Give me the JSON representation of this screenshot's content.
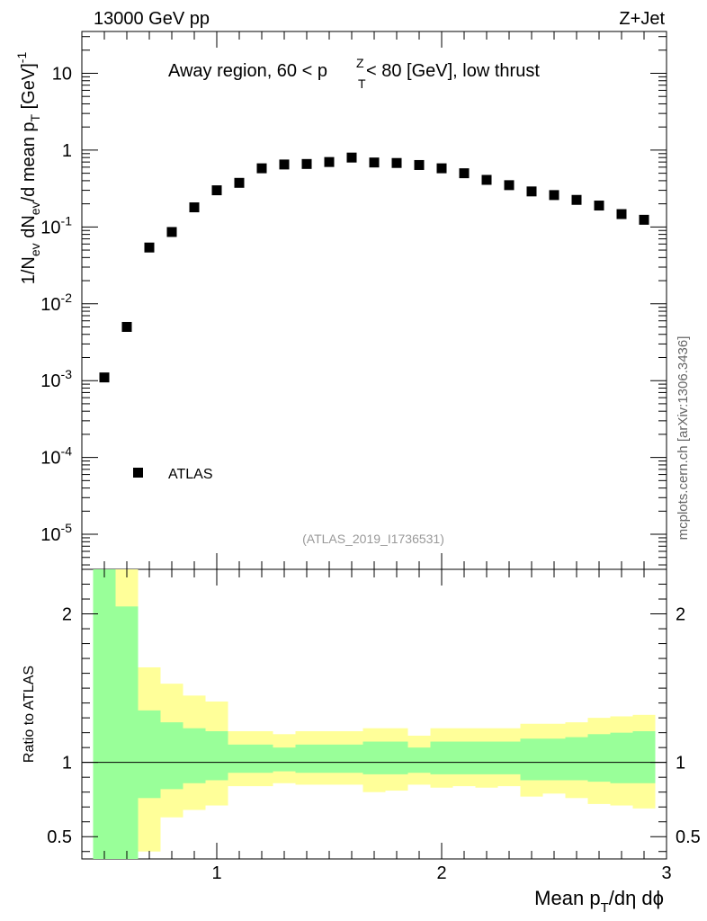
{
  "chart_data": [
    {
      "type": "scatter",
      "header_left": "13000 GeV pp",
      "header_right": "Z+Jet",
      "title": "Away region, 60 < p",
      "title_sup": "Z",
      "title_sub": "T",
      "title_rest": " < 80 [GeV], low thrust",
      "ylabel": "1/N_ev dN_ev/d mean p_T [GeV]^-1",
      "ylabel_parts": {
        "a": "1/N",
        "b": "ev",
        "c": " dN",
        "d": "ev",
        "e": "/d mean p",
        "f": "T",
        "g": " [GeV]",
        "h": "-1"
      },
      "yscale": "log",
      "ylim": [
        3.5e-06,
        35
      ],
      "xlim": [
        0.4,
        3.0
      ],
      "yticks": [
        {
          "v": 10,
          "label": "10"
        },
        {
          "v": 1,
          "label": "1"
        },
        {
          "v": 0.1,
          "base": "10",
          "exp": "-1"
        },
        {
          "v": 0.01,
          "base": "10",
          "exp": "-2"
        },
        {
          "v": 0.001,
          "base": "10",
          "exp": "-3"
        },
        {
          "v": 0.0001,
          "base": "10",
          "exp": "-4"
        },
        {
          "v": 1e-05,
          "base": "10",
          "exp": "-5"
        }
      ],
      "series": [
        {
          "name": "ATLAS",
          "x": [
            0.5,
            0.6,
            0.7,
            0.8,
            0.9,
            1.0,
            1.1,
            1.2,
            1.3,
            1.4,
            1.5,
            1.6,
            1.7,
            1.8,
            1.9,
            2.0,
            2.1,
            2.2,
            2.3,
            2.4,
            2.5,
            2.6,
            2.7,
            2.8,
            2.9
          ],
          "y": [
            0.0011,
            0.005,
            0.054,
            0.086,
            0.18,
            0.3,
            0.375,
            0.58,
            0.65,
            0.66,
            0.7,
            0.8,
            0.69,
            0.68,
            0.64,
            0.58,
            0.5,
            0.41,
            0.35,
            0.29,
            0.26,
            0.225,
            0.19,
            0.147,
            0.124
          ]
        }
      ],
      "legend": "bottom-left",
      "annotation": "(ATLAS_2019_I1736531)",
      "side_label": "mcplots.cern.ch [arXiv:1306.3436]"
    },
    {
      "type": "area",
      "ylabel": "Ratio to ATLAS",
      "xlabel": "Mean p_T/dη dϕ",
      "xlabel_parts": {
        "a": "Mean p",
        "b": "T",
        "c": "/dη dϕ"
      },
      "ylim": [
        0.35,
        2.3
      ],
      "xlim": [
        0.4,
        3.0
      ],
      "xticks": [
        {
          "v": 1,
          "label": "1"
        },
        {
          "v": 2,
          "label": "2"
        },
        {
          "v": 3,
          "label": "3"
        }
      ],
      "yticks": [
        {
          "v": 0.5,
          "label": "0.5"
        },
        {
          "v": 1,
          "label": "1"
        },
        {
          "v": 2,
          "label": "2"
        }
      ],
      "bins": [
        {
          "lo": 0.45,
          "hi": 0.55,
          "stat_lo": 0.35,
          "stat_hi": 2.3,
          "tot_lo": 0.35,
          "tot_hi": 2.3
        },
        {
          "lo": 0.55,
          "hi": 0.65,
          "stat_lo": 0.35,
          "stat_hi": 2.05,
          "tot_lo": 0.35,
          "tot_hi": 2.3
        },
        {
          "lo": 0.65,
          "hi": 0.75,
          "stat_lo": 0.76,
          "stat_hi": 1.35,
          "tot_lo": 0.4,
          "tot_hi": 1.64
        },
        {
          "lo": 0.75,
          "hi": 0.85,
          "stat_lo": 0.82,
          "stat_hi": 1.27,
          "tot_lo": 0.63,
          "tot_hi": 1.53
        },
        {
          "lo": 0.85,
          "hi": 0.95,
          "stat_lo": 0.86,
          "stat_hi": 1.23,
          "tot_lo": 0.68,
          "tot_hi": 1.45
        },
        {
          "lo": 0.95,
          "hi": 1.05,
          "stat_lo": 0.88,
          "stat_hi": 1.21,
          "tot_lo": 0.71,
          "tot_hi": 1.41
        },
        {
          "lo": 1.05,
          "hi": 1.15,
          "stat_lo": 0.93,
          "stat_hi": 1.12,
          "tot_lo": 0.84,
          "tot_hi": 1.21
        },
        {
          "lo": 1.15,
          "hi": 1.25,
          "stat_lo": 0.93,
          "stat_hi": 1.12,
          "tot_lo": 0.84,
          "tot_hi": 1.21
        },
        {
          "lo": 1.25,
          "hi": 1.35,
          "stat_lo": 0.94,
          "stat_hi": 1.1,
          "tot_lo": 0.86,
          "tot_hi": 1.19
        },
        {
          "lo": 1.35,
          "hi": 1.45,
          "stat_lo": 0.93,
          "stat_hi": 1.12,
          "tot_lo": 0.85,
          "tot_hi": 1.21
        },
        {
          "lo": 1.45,
          "hi": 1.55,
          "stat_lo": 0.93,
          "stat_hi": 1.12,
          "tot_lo": 0.85,
          "tot_hi": 1.21
        },
        {
          "lo": 1.55,
          "hi": 1.65,
          "stat_lo": 0.93,
          "stat_hi": 1.12,
          "tot_lo": 0.85,
          "tot_hi": 1.21
        },
        {
          "lo": 1.65,
          "hi": 1.75,
          "stat_lo": 0.92,
          "stat_hi": 1.14,
          "tot_lo": 0.8,
          "tot_hi": 1.23
        },
        {
          "lo": 1.75,
          "hi": 1.85,
          "stat_lo": 0.92,
          "stat_hi": 1.14,
          "tot_lo": 0.81,
          "tot_hi": 1.23
        },
        {
          "lo": 1.85,
          "hi": 1.95,
          "stat_lo": 0.93,
          "stat_hi": 1.1,
          "tot_lo": 0.85,
          "tot_hi": 1.18
        },
        {
          "lo": 1.95,
          "hi": 2.05,
          "stat_lo": 0.92,
          "stat_hi": 1.14,
          "tot_lo": 0.83,
          "tot_hi": 1.23
        },
        {
          "lo": 2.05,
          "hi": 2.15,
          "stat_lo": 0.92,
          "stat_hi": 1.14,
          "tot_lo": 0.84,
          "tot_hi": 1.23
        },
        {
          "lo": 2.15,
          "hi": 2.25,
          "stat_lo": 0.92,
          "stat_hi": 1.14,
          "tot_lo": 0.83,
          "tot_hi": 1.23
        },
        {
          "lo": 2.25,
          "hi": 2.35,
          "stat_lo": 0.92,
          "stat_hi": 1.14,
          "tot_lo": 0.84,
          "tot_hi": 1.23
        },
        {
          "lo": 2.35,
          "hi": 2.45,
          "stat_lo": 0.88,
          "stat_hi": 1.16,
          "tot_lo": 0.77,
          "tot_hi": 1.26
        },
        {
          "lo": 2.45,
          "hi": 2.55,
          "stat_lo": 0.88,
          "stat_hi": 1.16,
          "tot_lo": 0.79,
          "tot_hi": 1.26
        },
        {
          "lo": 2.55,
          "hi": 2.65,
          "stat_lo": 0.88,
          "stat_hi": 1.17,
          "tot_lo": 0.76,
          "tot_hi": 1.27
        },
        {
          "lo": 2.65,
          "hi": 2.75,
          "stat_lo": 0.87,
          "stat_hi": 1.19,
          "tot_lo": 0.72,
          "tot_hi": 1.3
        },
        {
          "lo": 2.75,
          "hi": 2.85,
          "stat_lo": 0.86,
          "stat_hi": 1.2,
          "tot_lo": 0.71,
          "tot_hi": 1.31
        },
        {
          "lo": 2.85,
          "hi": 2.95,
          "stat_lo": 0.86,
          "stat_hi": 1.21,
          "tot_lo": 0.69,
          "tot_hi": 1.32
        }
      ],
      "reference_line": 1,
      "colors": {
        "stat": "#99ff99",
        "total": "#ffff99",
        "line": "#000000"
      }
    }
  ]
}
